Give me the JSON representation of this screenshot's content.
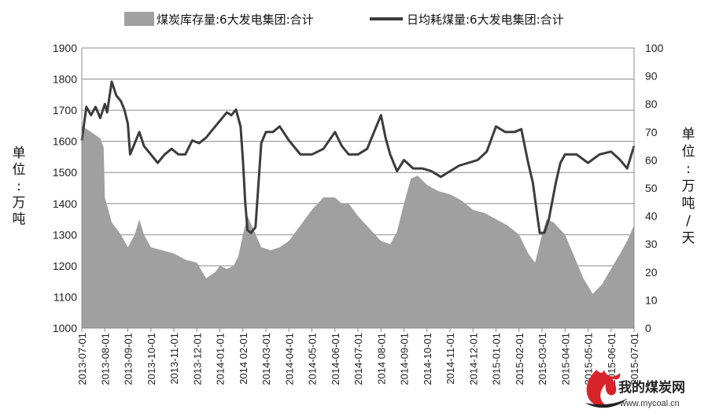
{
  "chart_data": {
    "type": "area+line",
    "xlabel": "",
    "left_axis": {
      "label_chars": [
        "单",
        "位",
        ":",
        "万",
        "吨"
      ],
      "ylim": [
        1000,
        1900
      ],
      "ticks": [
        1000,
        1100,
        1200,
        1300,
        1400,
        1500,
        1600,
        1700,
        1800,
        1900
      ]
    },
    "right_axis": {
      "label_chars": [
        "单",
        "位",
        ":",
        "万",
        "吨",
        "/",
        "天"
      ],
      "ylim": [
        0,
        100
      ],
      "ticks": [
        0,
        10,
        20,
        30,
        40,
        50,
        60,
        70,
        80,
        90,
        100
      ]
    },
    "x_ticks": [
      "2013-07-01",
      "2013-08-01",
      "2013-09-01",
      "2013-10-01",
      "2013-11-01",
      "2013-12-01",
      "2014-01-01",
      "2014 02-01",
      "2014-03-01",
      "2014-04-01",
      "2014-05-01",
      "2014-06-01",
      "2014-07-01",
      "2014 08-01",
      "2014-09-01",
      "2014-10-01",
      "2014-11-01",
      "2014-12-01",
      "2015-01-01",
      "2015-02-01",
      "2015-03-01",
      "2015-04-01",
      "2015-05-01",
      "2015-06-01",
      "2015-07-01"
    ],
    "grid": "horizontal",
    "legend_position": "top",
    "series": [
      {
        "name": "煤炭库存量:6大发电集团:合计",
        "type": "area",
        "axis": "left",
        "color": "#a0a0a0",
        "points": [
          [
            0.0,
            1650
          ],
          [
            0.4,
            1630
          ],
          [
            0.8,
            1610
          ],
          [
            0.95,
            1580
          ],
          [
            1.0,
            1420
          ],
          [
            1.3,
            1340
          ],
          [
            1.7,
            1300
          ],
          [
            2.0,
            1260
          ],
          [
            2.3,
            1300
          ],
          [
            2.5,
            1350
          ],
          [
            2.7,
            1300
          ],
          [
            3.0,
            1260
          ],
          [
            3.5,
            1250
          ],
          [
            4.0,
            1240
          ],
          [
            4.5,
            1220
          ],
          [
            5.0,
            1210
          ],
          [
            5.4,
            1160
          ],
          [
            5.8,
            1180
          ],
          [
            6.0,
            1200
          ],
          [
            6.3,
            1190
          ],
          [
            6.6,
            1200
          ],
          [
            6.8,
            1230
          ],
          [
            7.0,
            1300
          ],
          [
            7.2,
            1360
          ],
          [
            7.5,
            1310
          ],
          [
            7.8,
            1260
          ],
          [
            8.2,
            1250
          ],
          [
            8.6,
            1260
          ],
          [
            9.0,
            1280
          ],
          [
            9.5,
            1330
          ],
          [
            10.0,
            1380
          ],
          [
            10.5,
            1420
          ],
          [
            11.0,
            1420
          ],
          [
            11.3,
            1400
          ],
          [
            11.6,
            1400
          ],
          [
            12.0,
            1360
          ],
          [
            12.5,
            1320
          ],
          [
            13.0,
            1280
          ],
          [
            13.4,
            1270
          ],
          [
            13.7,
            1310
          ],
          [
            14.0,
            1400
          ],
          [
            14.3,
            1480
          ],
          [
            14.6,
            1490
          ],
          [
            15.0,
            1460
          ],
          [
            15.5,
            1440
          ],
          [
            16.0,
            1430
          ],
          [
            16.5,
            1410
          ],
          [
            17.0,
            1380
          ],
          [
            17.5,
            1370
          ],
          [
            18.0,
            1350
          ],
          [
            18.5,
            1330
          ],
          [
            19.0,
            1300
          ],
          [
            19.4,
            1240
          ],
          [
            19.7,
            1210
          ],
          [
            20.0,
            1300
          ],
          [
            20.2,
            1350
          ],
          [
            20.5,
            1340
          ],
          [
            21.0,
            1300
          ],
          [
            21.4,
            1230
          ],
          [
            21.8,
            1160
          ],
          [
            22.2,
            1110
          ],
          [
            22.6,
            1140
          ],
          [
            23.0,
            1190
          ],
          [
            23.4,
            1240
          ],
          [
            23.7,
            1280
          ],
          [
            24.0,
            1330
          ]
        ]
      },
      {
        "name": "日均耗煤量:6大发电集团:合计",
        "type": "line",
        "axis": "right",
        "color": "#3c3c3c",
        "points": [
          [
            0.0,
            67
          ],
          [
            0.2,
            79
          ],
          [
            0.4,
            76
          ],
          [
            0.6,
            79
          ],
          [
            0.8,
            75
          ],
          [
            1.0,
            80
          ],
          [
            1.1,
            77
          ],
          [
            1.3,
            88
          ],
          [
            1.5,
            83
          ],
          [
            1.7,
            81
          ],
          [
            1.85,
            78
          ],
          [
            2.0,
            73
          ],
          [
            2.1,
            62
          ],
          [
            2.3,
            66
          ],
          [
            2.5,
            70
          ],
          [
            2.7,
            65
          ],
          [
            3.0,
            62
          ],
          [
            3.3,
            59
          ],
          [
            3.6,
            62
          ],
          [
            3.9,
            64
          ],
          [
            4.2,
            62
          ],
          [
            4.5,
            62
          ],
          [
            4.8,
            67
          ],
          [
            5.1,
            66
          ],
          [
            5.4,
            68
          ],
          [
            5.7,
            71
          ],
          [
            6.0,
            74
          ],
          [
            6.3,
            77
          ],
          [
            6.5,
            76
          ],
          [
            6.7,
            78
          ],
          [
            6.9,
            72
          ],
          [
            7.0,
            60
          ],
          [
            7.1,
            45
          ],
          [
            7.2,
            35
          ],
          [
            7.35,
            34
          ],
          [
            7.55,
            36
          ],
          [
            7.8,
            66
          ],
          [
            8.0,
            70
          ],
          [
            8.3,
            70
          ],
          [
            8.6,
            72
          ],
          [
            9.0,
            67
          ],
          [
            9.5,
            62
          ],
          [
            10.0,
            62
          ],
          [
            10.5,
            64
          ],
          [
            11.0,
            70
          ],
          [
            11.3,
            65
          ],
          [
            11.6,
            62
          ],
          [
            12.0,
            62
          ],
          [
            12.4,
            64
          ],
          [
            12.8,
            72
          ],
          [
            13.0,
            76
          ],
          [
            13.2,
            68
          ],
          [
            13.4,
            62
          ],
          [
            13.7,
            56
          ],
          [
            14.0,
            60
          ],
          [
            14.4,
            57
          ],
          [
            14.8,
            57
          ],
          [
            15.2,
            56
          ],
          [
            15.6,
            54
          ],
          [
            16.0,
            56
          ],
          [
            16.4,
            58
          ],
          [
            16.8,
            59
          ],
          [
            17.2,
            60
          ],
          [
            17.6,
            63
          ],
          [
            18.0,
            72
          ],
          [
            18.4,
            70
          ],
          [
            18.8,
            70
          ],
          [
            19.1,
            71
          ],
          [
            19.4,
            59
          ],
          [
            19.6,
            52
          ],
          [
            19.8,
            40
          ],
          [
            19.9,
            34
          ],
          [
            20.1,
            34
          ],
          [
            20.3,
            39
          ],
          [
            20.6,
            52
          ],
          [
            20.8,
            59
          ],
          [
            21.0,
            62
          ],
          [
            21.5,
            62
          ],
          [
            22.0,
            59
          ],
          [
            22.5,
            62
          ],
          [
            23.0,
            63
          ],
          [
            23.4,
            60
          ],
          [
            23.7,
            57
          ],
          [
            24.0,
            65
          ]
        ]
      }
    ]
  },
  "watermark": {
    "site_name": "我的煤炭网",
    "url": "www.mycoal.cn"
  }
}
